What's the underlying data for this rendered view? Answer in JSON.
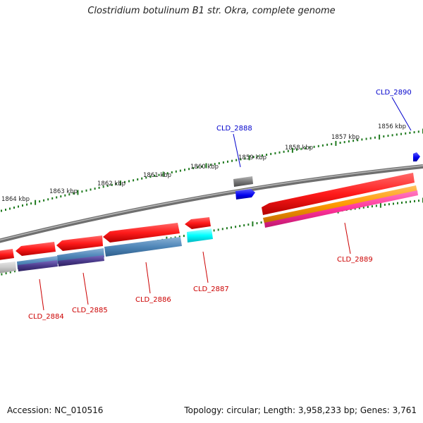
{
  "title": "Clostridium botulinum B1 str. Okra, complete genome",
  "footer": {
    "accession": "Accession: NC_010516",
    "topology": "Topology: circular; Length: 3,958,233 bp; Genes: 3,761"
  },
  "scale_ticks": [
    "1864 kbp",
    "1863 kbp",
    "1862 kbp",
    "1861 kbp",
    "1860 kbp",
    "1859 kbp",
    "1858 kbp",
    "1857 kbp",
    "1856 kbp"
  ],
  "gene_labels": [
    {
      "id": "CLD_2884",
      "color": "#cc0000"
    },
    {
      "id": "CLD_2885",
      "color": "#cc0000"
    },
    {
      "id": "CLD_2886",
      "color": "#cc0000"
    },
    {
      "id": "CLD_2887",
      "color": "#cc0000"
    },
    {
      "id": "CLD_2888",
      "color": "#0000cc"
    },
    {
      "id": "CLD_2889",
      "color": "#cc0000"
    },
    {
      "id": "CLD_2890",
      "color": "#0000cc"
    }
  ],
  "colors": {
    "cds": "#ff1a1a",
    "trna": "#6e6e6e",
    "misc": "#0a0aff",
    "steelblue": "#4f86b8",
    "purple": "#4b3b8c",
    "orange": "#ff9900",
    "magenta": "#ff3399",
    "cyan": "#00ffff",
    "tick": "#1f7a1f",
    "backbone": "#888888"
  }
}
